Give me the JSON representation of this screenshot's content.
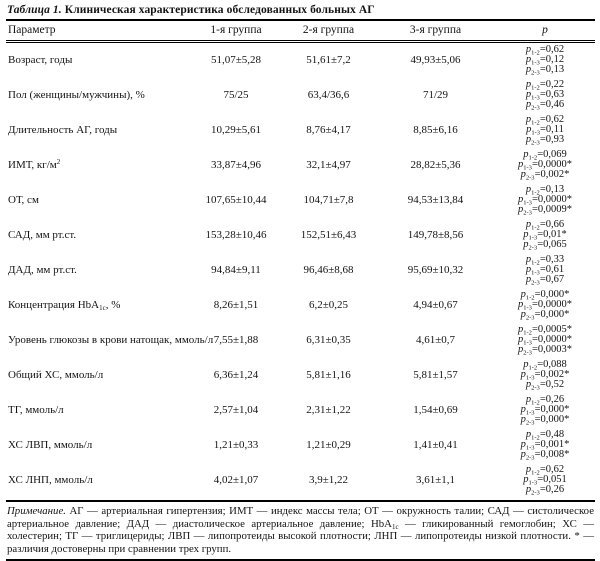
{
  "title": {
    "label": "Таблица 1.",
    "text": "Клиническая характеристика обследованных больных АГ"
  },
  "table": {
    "columns": [
      "Параметр",
      "1-я группа",
      "2-я группа",
      "3-я группа",
      "p"
    ],
    "rows": [
      {
        "param": [
          [
            "t",
            "Возраст, годы"
          ]
        ],
        "values": [
          "51,07±5,28",
          "51,61±7,2",
          "49,93±5,06"
        ],
        "p": [
          {
            "s": "1-2",
            "v": "0,62"
          },
          {
            "s": "1-3",
            "v": "0,12"
          },
          {
            "s": "2-3",
            "v": "0,13"
          }
        ]
      },
      {
        "param": [
          [
            "t",
            "Пол (женщины/мужчины), %"
          ]
        ],
        "values": [
          "75/25",
          "63,4/36,6",
          "71/29"
        ],
        "p": [
          {
            "s": "1-2",
            "v": "0,22"
          },
          {
            "s": "1-3",
            "v": "0,63"
          },
          {
            "s": "2-3",
            "v": "0,46"
          }
        ]
      },
      {
        "param": [
          [
            "t",
            "Длительность АГ, годы"
          ]
        ],
        "values": [
          "10,29±5,61",
          "8,76±4,17",
          "8,85±6,16"
        ],
        "p": [
          {
            "s": "1-2",
            "v": "0,62"
          },
          {
            "s": "1-3",
            "v": "0,11"
          },
          {
            "s": "2-3",
            "v": "0,93"
          }
        ]
      },
      {
        "param": [
          [
            "t",
            "ИМТ, кг/м"
          ],
          [
            "sup",
            "2"
          ]
        ],
        "values": [
          "33,87±4,96",
          "32,1±4,97",
          "28,82±5,36"
        ],
        "p": [
          {
            "s": "1-2",
            "v": "0,069"
          },
          {
            "s": "1-3",
            "v": "0,0000*"
          },
          {
            "s": "2-3",
            "v": "0,002*"
          }
        ]
      },
      {
        "param": [
          [
            "t",
            "ОТ, см"
          ]
        ],
        "values": [
          "107,65±10,44",
          "104,71±7,8",
          "94,53±13,84"
        ],
        "p": [
          {
            "s": "1-2",
            "v": "0,13"
          },
          {
            "s": "1-3",
            "v": "0,0000*"
          },
          {
            "s": "2-3",
            "v": "0,0009*"
          }
        ]
      },
      {
        "param": [
          [
            "t",
            "САД, мм рт.ст."
          ]
        ],
        "values": [
          "153,28±10,46",
          "152,51±6,43",
          "149,78±8,56"
        ],
        "p": [
          {
            "s": "1-2",
            "v": "0,66"
          },
          {
            "s": "1-3",
            "v": "0,01*"
          },
          {
            "s": "2-3",
            "v": "0,065"
          }
        ]
      },
      {
        "param": [
          [
            "t",
            "ДАД, мм рт.ст."
          ]
        ],
        "values": [
          "94,84±9,11",
          "96,46±8,68",
          "95,69±10,32"
        ],
        "p": [
          {
            "s": "1-2",
            "v": "0,33"
          },
          {
            "s": "1-3",
            "v": "0,61"
          },
          {
            "s": "2-3",
            "v": "0,67"
          }
        ]
      },
      {
        "param": [
          [
            "t",
            "Концентрация HbA"
          ],
          [
            "sub",
            "1c"
          ],
          [
            "t",
            ", %"
          ]
        ],
        "values": [
          "8,26±1,51",
          "6,2±0,25",
          "4,94±0,67"
        ],
        "p": [
          {
            "s": "1-2",
            "v": "0,000*"
          },
          {
            "s": "1-3",
            "v": "0,0000*"
          },
          {
            "s": "2-3",
            "v": "0,000*"
          }
        ]
      },
      {
        "param": [
          [
            "t",
            "Уровень глюкозы в крови натощак, ммоль/л"
          ]
        ],
        "values": [
          "7,55±1,88",
          "6,31±0,35",
          "4,61±0,7"
        ],
        "p": [
          {
            "s": "1-2",
            "v": "0,0005*"
          },
          {
            "s": "1-3",
            "v": "0,0000*"
          },
          {
            "s": "2-3",
            "v": "0,0003*"
          }
        ]
      },
      {
        "param": [
          [
            "t",
            "Общий ХС, ммоль/л"
          ]
        ],
        "values": [
          "6,36±1,24",
          "5,81±1,16",
          "5,81±1,57"
        ],
        "p": [
          {
            "s": "1-2",
            "v": "0,088"
          },
          {
            "s": "1-3",
            "v": "0,002*"
          },
          {
            "s": "2-3",
            "v": "0,52"
          }
        ]
      },
      {
        "param": [
          [
            "t",
            "ТГ, ммоль/л"
          ]
        ],
        "values": [
          "2,57±1,04",
          "2,31±1,22",
          "1,54±0,69"
        ],
        "p": [
          {
            "s": "1-2",
            "v": "0,26"
          },
          {
            "s": "1-3",
            "v": "0,000*"
          },
          {
            "s": "2-3",
            "v": "0,000*"
          }
        ]
      },
      {
        "param": [
          [
            "t",
            "ХС ЛВП, ммоль/л"
          ]
        ],
        "values": [
          "1,21±0,33",
          "1,21±0,29",
          "1,41±0,41"
        ],
        "p": [
          {
            "s": "1-2",
            "v": "0,48"
          },
          {
            "s": "1-3",
            "v": "0,001*"
          },
          {
            "s": "2-3",
            "v": "0,008*"
          }
        ]
      },
      {
        "param": [
          [
            "t",
            "ХС ЛНП, ммоль/л"
          ]
        ],
        "values": [
          "4,02±1,07",
          "3,9±1,22",
          "3,61±1,1"
        ],
        "p": [
          {
            "s": "1-2",
            "v": "0,62"
          },
          {
            "s": "1-3",
            "v": "0,051"
          },
          {
            "s": "2-3",
            "v": "0,26"
          }
        ]
      }
    ]
  },
  "note": {
    "segments": [
      [
        "i",
        "Примечание."
      ],
      [
        "t",
        " АГ — артериальная гипертензия; ИМТ — индекс массы тела; ОТ — окружность талии; САД — систолическое артериальное давление; ДАД — диастолическое артериальное давление; HbA"
      ],
      [
        "sub",
        "1c"
      ],
      [
        "t",
        " — гликированный гемоглобин; ХС — холестерин; ТГ — триглицериды; ЛВП — липопротеиды высокой плотности; ЛНП — липопротеиды низкой плотности. * — различия достоверны при сравнении трех групп."
      ]
    ]
  }
}
